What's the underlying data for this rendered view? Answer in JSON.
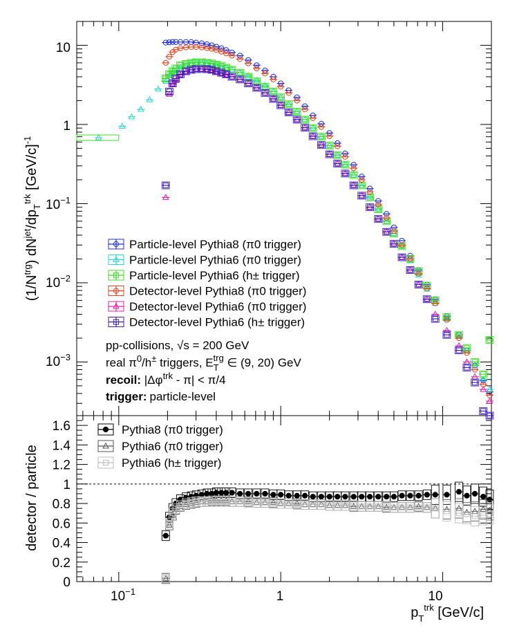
{
  "colors": {
    "p8_part": "#1f2fd8",
    "p6_part_pi0": "#29d6cf",
    "p6_part_h": "#3fdc2a",
    "p8_det": "#e6441c",
    "p6_det_pi0": "#e01fae",
    "p6_det_h": "#3d1fb8",
    "ratio_p8": "#000000",
    "ratio_p6_pi0": "#555555",
    "ratio_p6_h": "#bbbbbb"
  },
  "text": {
    "ylabel_top": "(1/N^trg) dN^jet/dp_T^trk [GeV/c]^-1",
    "ylabel_bottom": "detector / particle",
    "xlabel": "p_T^trk [GeV/c]",
    "info_line1": "pp-collisions, √s = 200 GeV",
    "info_line2": "real π0/h± triggers, E_T^trg ∈ (9, 20) GeV",
    "info_line3_bold": "recoil:",
    "info_line3": "|Δφtrk - π| < π/4",
    "info_line4_bold": "trigger:",
    "info_line4": "particle-level",
    "legend_top": [
      "Particle-level Pythia8 (π0 trigger)",
      "Particle-level Pythia6 (π0 trigger)",
      "Particle-level Pythia6 (h± trigger)",
      "Detector-level Pythia8 (π0 trigger)",
      "Detector-level Pythia6 (π0 trigger)",
      "Detector-level Pythia6 (h± trigger)"
    ],
    "legend_bottom": [
      "Pythia8 (π0 trigger)",
      "Pythia6 (π0 trigger)",
      "Pythia6 (h± trigger)"
    ],
    "yticks_top": [
      "10",
      "1",
      "10-1",
      "10-2",
      "10-3"
    ],
    "yticks_bottom": [
      "0",
      "0.2",
      "0.4",
      "0.6",
      "0.8",
      "1",
      "1.2",
      "1.4",
      "1.6"
    ],
    "xticks": [
      "10-1",
      "1",
      "10"
    ]
  },
  "chart_data": [
    {
      "type": "scatter",
      "panel": "top",
      "xscale": "log",
      "yscale": "log",
      "xlim": [
        0.055,
        20
      ],
      "ylim": [
        0.00021,
        20
      ],
      "x": [
        0.075,
        0.105,
        0.12,
        0.137,
        0.155,
        0.175,
        0.195,
        0.205,
        0.215,
        0.225,
        0.24,
        0.26,
        0.28,
        0.3,
        0.325,
        0.35,
        0.375,
        0.4,
        0.43,
        0.46,
        0.5,
        0.56,
        0.63,
        0.71,
        0.8,
        0.9,
        1.0,
        1.12,
        1.26,
        1.41,
        1.58,
        1.78,
        2.0,
        2.24,
        2.5,
        2.82,
        3.16,
        3.55,
        4.0,
        4.5,
        5.0,
        5.6,
        6.3,
        7.1,
        8.0,
        9.0,
        10.6,
        12.6,
        14.1,
        15.8,
        17.8,
        19.5
      ],
      "series": [
        {
          "name": "Particle-level Pythia8 (π0 trigger)",
          "values": [
            null,
            null,
            null,
            null,
            null,
            null,
            10.8,
            10.9,
            11.0,
            11.0,
            11.0,
            11.0,
            11.0,
            10.8,
            10.6,
            10.3,
            10.0,
            9.6,
            9.2,
            8.7,
            8.1,
            7.4,
            6.5,
            5.6,
            4.8,
            4.0,
            3.3,
            2.7,
            2.2,
            1.7,
            1.3,
            1.02,
            0.78,
            0.58,
            0.43,
            0.31,
            0.22,
            0.155,
            0.108,
            0.074,
            0.05,
            0.034,
            0.022,
            0.0145,
            0.0095,
            0.0062,
            0.0038,
            0.0022,
            0.0014,
            0.0009,
            0.00058,
            0.00042
          ]
        },
        {
          "name": "Particle-level Pythia6 (π0 trigger)",
          "values": [
            0.68,
            0.95,
            1.25,
            1.55,
            2.05,
            2.8,
            3.5,
            4.1,
            4.5,
            4.8,
            5.3,
            5.6,
            5.9,
            6.0,
            6.0,
            5.9,
            5.8,
            5.6,
            5.4,
            5.2,
            4.9,
            4.5,
            4.1,
            3.6,
            3.1,
            2.6,
            2.2,
            1.8,
            1.45,
            1.15,
            0.9,
            0.7,
            0.54,
            0.41,
            0.31,
            0.23,
            0.168,
            0.122,
            0.086,
            0.06,
            0.042,
            0.029,
            0.019,
            0.0125,
            0.0083,
            0.0055,
            0.0035,
            0.0021,
            0.0014,
            0.0009,
            0.0006,
            0.00045
          ]
        },
        {
          "name": "Particle-level Pythia6 (h± trigger)",
          "values": [
            null,
            null,
            null,
            null,
            null,
            null,
            3.8,
            4.3,
            4.7,
            5.1,
            5.6,
            5.8,
            6.0,
            6.1,
            6.1,
            6.0,
            5.9,
            5.7,
            5.5,
            5.2,
            4.9,
            4.5,
            4.0,
            3.5,
            3.0,
            2.6,
            2.2,
            1.8,
            1.45,
            1.15,
            0.9,
            0.7,
            0.54,
            0.41,
            0.31,
            0.23,
            0.17,
            0.12,
            0.085,
            0.06,
            0.042,
            0.029,
            0.02,
            0.014,
            0.0092,
            0.006,
            0.0037,
            0.0022,
            0.0015,
            0.001,
            0.0007,
            0.0019
          ]
        },
        {
          "name": "Detector-level Pythia8 (π0 trigger)",
          "values": [
            null,
            null,
            null,
            null,
            null,
            null,
            6.0,
            7.2,
            8.2,
            8.8,
            9.2,
            9.4,
            9.5,
            9.5,
            9.4,
            9.2,
            9.0,
            8.7,
            8.3,
            7.9,
            7.4,
            6.7,
            5.9,
            5.1,
            4.4,
            3.7,
            3.0,
            2.5,
            2.0,
            1.55,
            1.2,
            0.93,
            0.71,
            0.53,
            0.39,
            0.28,
            0.2,
            0.14,
            0.097,
            0.066,
            0.045,
            0.03,
            0.02,
            0.013,
            0.0085,
            0.0055,
            0.0034,
            0.002,
            0.0013,
            0.0008,
            0.00052,
            0.00038
          ]
        },
        {
          "name": "Detector-level Pythia6 (π0 trigger)",
          "values": [
            null,
            null,
            null,
            null,
            null,
            null,
            0.12,
            2.4,
            3.2,
            3.6,
            4.2,
            4.6,
            4.9,
            5.0,
            5.0,
            4.9,
            4.8,
            4.6,
            4.4,
            4.2,
            4.0,
            3.7,
            3.3,
            2.9,
            2.5,
            2.1,
            1.75,
            1.42,
            1.15,
            0.91,
            0.71,
            0.55,
            0.42,
            0.32,
            0.24,
            0.17,
            0.126,
            0.09,
            0.064,
            0.044,
            0.031,
            0.021,
            0.0145,
            0.0095,
            0.0062,
            0.004,
            0.0025,
            0.0016,
            0.001,
            0.00065,
            0.00045,
            0.00032
          ]
        },
        {
          "name": "Detector-level Pythia6 (h± trigger)",
          "values": [
            null,
            null,
            null,
            null,
            null,
            null,
            0.17,
            2.6,
            3.3,
            3.8,
            4.3,
            4.7,
            4.9,
            5.0,
            5.0,
            5.0,
            4.9,
            4.7,
            4.5,
            4.3,
            4.0,
            3.7,
            3.3,
            2.9,
            2.5,
            2.1,
            1.75,
            1.42,
            1.15,
            0.91,
            0.71,
            0.55,
            0.42,
            0.32,
            0.24,
            0.17,
            0.126,
            0.09,
            0.064,
            0.044,
            0.031,
            0.021,
            0.0145,
            0.0095,
            0.0062,
            0.0035,
            0.0022,
            0.0014,
            0.00085,
            0.00055,
            0.00024,
            0.00021
          ]
        }
      ]
    },
    {
      "type": "scatter",
      "panel": "bottom",
      "xscale": "log",
      "xlim": [
        0.055,
        20
      ],
      "ylim": [
        0,
        1.7
      ],
      "reference_line": 1.0,
      "x": [
        0.195,
        0.205,
        0.215,
        0.225,
        0.24,
        0.26,
        0.28,
        0.3,
        0.325,
        0.35,
        0.375,
        0.4,
        0.43,
        0.46,
        0.5,
        0.56,
        0.63,
        0.71,
        0.8,
        0.9,
        1.0,
        1.12,
        1.26,
        1.41,
        1.58,
        1.78,
        2.0,
        2.24,
        2.5,
        2.82,
        3.16,
        3.55,
        4.0,
        4.5,
        5.0,
        5.6,
        6.3,
        7.1,
        8.0,
        9.0,
        10.6,
        12.6,
        14.1,
        15.8,
        17.8,
        19.5
      ],
      "series": [
        {
          "name": "Pythia8 (π0 trigger)",
          "values": [
            0.47,
            0.66,
            0.75,
            0.8,
            0.84,
            0.86,
            0.87,
            0.88,
            0.89,
            0.9,
            0.9,
            0.91,
            0.91,
            0.91,
            0.91,
            0.9,
            0.9,
            0.9,
            0.9,
            0.89,
            0.89,
            0.88,
            0.88,
            0.88,
            0.87,
            0.87,
            0.87,
            0.87,
            0.87,
            0.87,
            0.87,
            0.87,
            0.87,
            0.87,
            0.87,
            0.88,
            0.88,
            0.88,
            0.89,
            0.89,
            0.89,
            0.92,
            0.88,
            0.9,
            0.87,
            0.84
          ]
        },
        {
          "name": "Pythia6 (π0 trigger)",
          "values": [
            0.03,
            0.58,
            0.68,
            0.74,
            0.77,
            0.79,
            0.8,
            0.81,
            0.82,
            0.82,
            0.83,
            0.83,
            0.83,
            0.83,
            0.82,
            0.82,
            0.82,
            0.81,
            0.81,
            0.81,
            0.8,
            0.8,
            0.8,
            0.79,
            0.79,
            0.79,
            0.78,
            0.78,
            0.78,
            0.77,
            0.77,
            0.77,
            0.77,
            0.76,
            0.76,
            0.76,
            0.76,
            0.77,
            0.76,
            0.75,
            0.74,
            0.75,
            0.71,
            0.72,
            0.74,
            0.73
          ]
        },
        {
          "name": "Pythia6 (h± trigger)",
          "values": [
            0.04,
            0.6,
            0.7,
            0.75,
            0.78,
            0.8,
            0.81,
            0.82,
            0.82,
            0.82,
            0.82,
            0.82,
            0.82,
            0.82,
            0.82,
            0.82,
            0.81,
            0.81,
            0.81,
            0.8,
            0.8,
            0.8,
            0.79,
            0.79,
            0.79,
            0.79,
            0.78,
            0.78,
            0.78,
            0.78,
            0.77,
            0.77,
            0.77,
            0.77,
            0.76,
            0.76,
            0.76,
            0.76,
            0.76,
            0.75,
            0.72,
            0.7,
            0.69,
            0.67,
            0.68,
            0.69
          ]
        }
      ]
    }
  ]
}
